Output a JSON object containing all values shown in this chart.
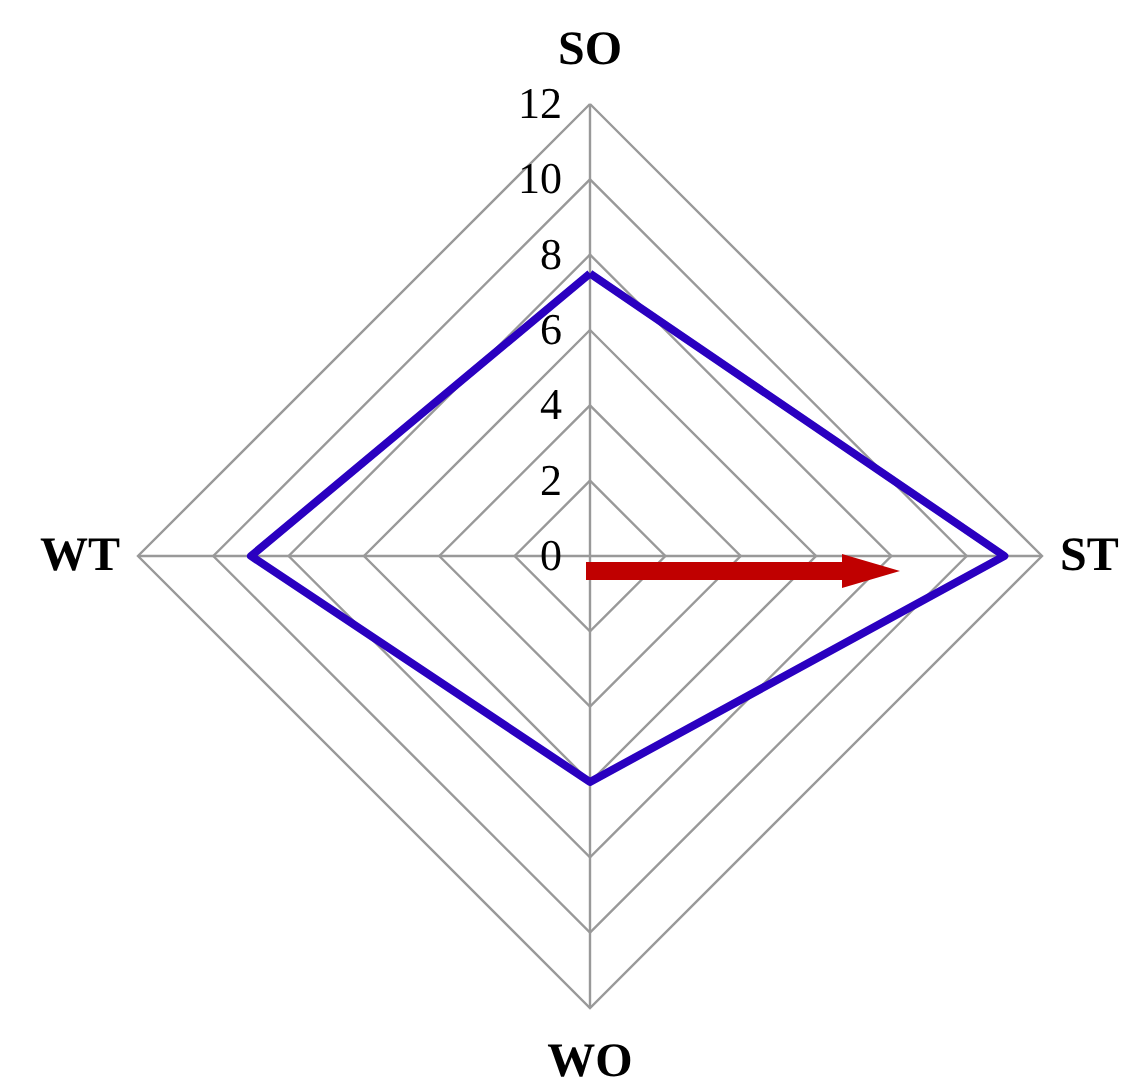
{
  "chart_data": {
    "type": "radar",
    "categories": [
      "SO",
      "ST",
      "WO",
      "WT"
    ],
    "series": [
      {
        "color": "#2a00c0",
        "values": [
          7.5,
          11,
          6,
          9
        ]
      }
    ],
    "ylim": [
      0,
      12
    ],
    "yticks": [
      0,
      2,
      4,
      6,
      8,
      10,
      12
    ],
    "grid": true
  }
}
